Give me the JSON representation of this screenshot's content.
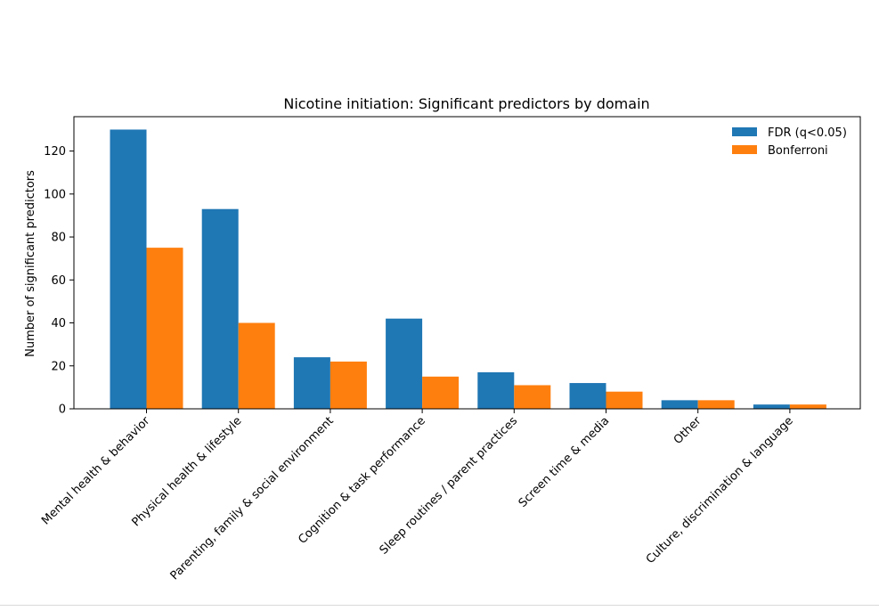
{
  "chart_data": {
    "type": "bar",
    "title": "Nicotine initiation: Significant predictors by domain",
    "xlabel": "",
    "ylabel": "Number of significant predictors",
    "ylim": [
      0,
      136
    ],
    "yticks": [
      0,
      20,
      40,
      60,
      80,
      100,
      120
    ],
    "categories": [
      "Mental health & behavior",
      "Physical health & lifestyle",
      "Parenting, family & social environment",
      "Cognition & task performance",
      "Sleep routines / parent practices",
      "Screen time & media",
      "Other",
      "Culture, discrimination & language"
    ],
    "series": [
      {
        "name": "FDR (q<0.05)",
        "color": "#1f77b4",
        "values": [
          130,
          93,
          24,
          42,
          17,
          12,
          4,
          2
        ]
      },
      {
        "name": "Bonferroni",
        "color": "#ff7f0e",
        "values": [
          75,
          40,
          22,
          15,
          11,
          8,
          4,
          2
        ]
      }
    ],
    "legend_position": "top-right",
    "grid": false
  }
}
